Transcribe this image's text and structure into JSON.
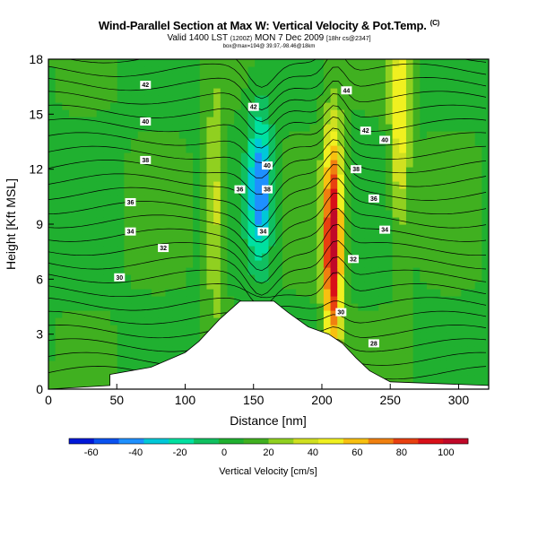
{
  "header": {
    "title": "Wind-Parallel Section at Max W: Vertical Velocity & Pot.Temp.",
    "title_corner": "(C)",
    "subtitle": "Valid 1400 LST",
    "subtitle_small": "(1200Z)",
    "subtitle_rest": "MON 7 Dec 2009",
    "subtitle_tag": "[18hr cs@2347]",
    "small_line": "box@max=194@ 39.97,-98.46@18km"
  },
  "chart_data": {
    "type": "heatmap",
    "xlabel": "Distance [nm]",
    "ylabel": "Height [Kft MSL]",
    "xlim": [
      0,
      322
    ],
    "ylim": [
      0,
      18
    ],
    "xticks": [
      0,
      50,
      100,
      150,
      200,
      250,
      300
    ],
    "yticks": [
      0,
      3,
      6,
      9,
      12,
      15,
      18
    ],
    "colorbar": {
      "label": "Vertical Velocity [cm/s]",
      "ticks": [
        -60,
        -40,
        -20,
        0,
        20,
        40,
        60,
        80,
        100
      ],
      "range": [
        -70,
        110
      ],
      "colors": [
        "#0018d8",
        "#0a52f0",
        "#1e90ff",
        "#00c8d8",
        "#00e0a0",
        "#10c060",
        "#20b030",
        "#40b020",
        "#90d020",
        "#d0e020",
        "#f0f020",
        "#f8c010",
        "#f08010",
        "#e84010",
        "#d81018",
        "#c00828"
      ]
    },
    "terrain": [
      [
        0,
        0
      ],
      [
        45,
        0.2
      ],
      [
        45,
        0.8
      ],
      [
        75,
        1.2
      ],
      [
        100,
        2
      ],
      [
        110,
        2.6
      ],
      [
        125,
        3.8
      ],
      [
        140,
        4.8
      ],
      [
        165,
        4.8
      ],
      [
        175,
        4.2
      ],
      [
        190,
        3.4
      ],
      [
        205,
        3
      ],
      [
        215,
        2.5
      ],
      [
        225,
        1.7
      ],
      [
        235,
        1.0
      ],
      [
        250,
        0.4
      ],
      [
        322,
        0.2
      ]
    ],
    "updrafts": [
      {
        "x": 208,
        "z": 8,
        "w": 100
      },
      {
        "x": 257,
        "z": 15,
        "w": 45
      },
      {
        "x": 122,
        "z": 10,
        "w": 30
      }
    ],
    "downdrafts": [
      {
        "x": 155,
        "z": 11,
        "w": -55
      }
    ],
    "contour_labels": [
      {
        "text": "42",
        "x": 71,
        "z": 16.6
      },
      {
        "text": "40",
        "x": 71,
        "z": 14.6
      },
      {
        "text": "38",
        "x": 71,
        "z": 12.5
      },
      {
        "text": "36",
        "x": 60,
        "z": 10.2
      },
      {
        "text": "34",
        "x": 60,
        "z": 8.6
      },
      {
        "text": "32",
        "x": 84,
        "z": 7.7
      },
      {
        "text": "30",
        "x": 52,
        "z": 6.1
      },
      {
        "text": "42",
        "x": 150,
        "z": 15.4
      },
      {
        "text": "40",
        "x": 160,
        "z": 12.2
      },
      {
        "text": "38",
        "x": 160,
        "z": 10.9
      },
      {
        "text": "36",
        "x": 140,
        "z": 10.9
      },
      {
        "text": "34",
        "x": 157,
        "z": 8.6
      },
      {
        "text": "44",
        "x": 218,
        "z": 16.3
      },
      {
        "text": "42",
        "x": 232,
        "z": 14.1
      },
      {
        "text": "40",
        "x": 246,
        "z": 13.6
      },
      {
        "text": "38",
        "x": 225,
        "z": 12.0
      },
      {
        "text": "36",
        "x": 238,
        "z": 10.4
      },
      {
        "text": "34",
        "x": 246,
        "z": 8.7
      },
      {
        "text": "32",
        "x": 223,
        "z": 7.1
      },
      {
        "text": "30",
        "x": 214,
        "z": 4.2
      },
      {
        "text": "28",
        "x": 238,
        "z": 2.5
      }
    ]
  }
}
